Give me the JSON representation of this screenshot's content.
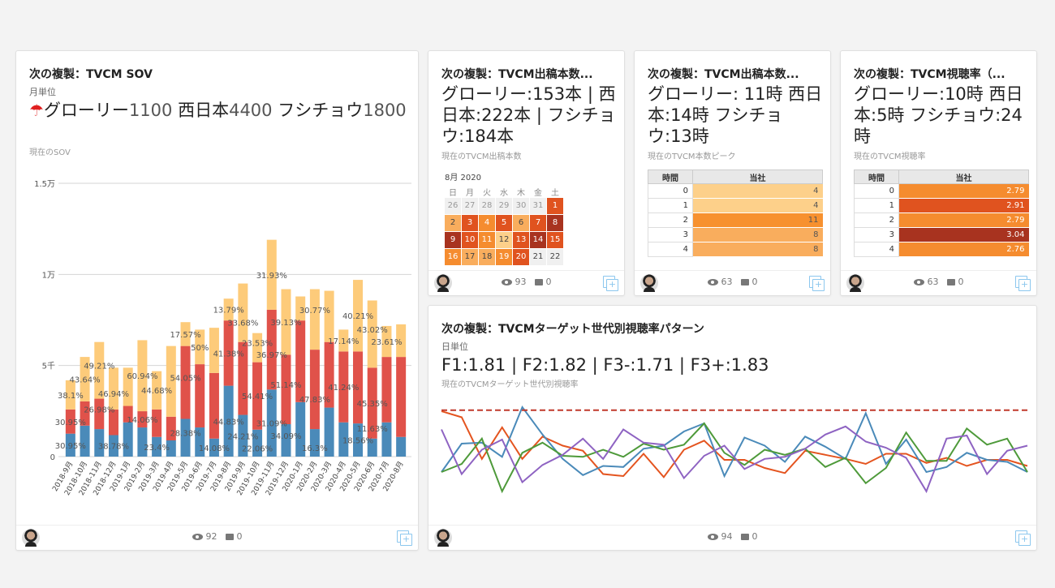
{
  "colors": {
    "blue": "#4a8ab9",
    "red": "#e0524a",
    "yellow": "#fdcb7a",
    "grid": "#d5d5d5",
    "accent": "#8cc7ee"
  },
  "cards": [
    {
      "title": "次の複製：TVCM SOV",
      "subtitle": "月単位",
      "kpi_parts": [
        [
          "グローリー",
          "1100"
        ],
        [
          " 西日本",
          "4400"
        ],
        [
          " フシチョウ",
          "1800"
        ]
      ],
      "caption": "現在のSOV",
      "views": "92",
      "comments": "0",
      "icon": "umbrella-icon"
    },
    {
      "title": "次の複製：TVCM出稿本数...",
      "kpi": "グローリー:153本 | 西日本:222本 | フシチョウ:184本",
      "caption": "現在のTVCM出稿本数",
      "views": "93",
      "comments": "0"
    },
    {
      "title": "次の複製：TVCM出稿本数...",
      "kpi": "グローリー: 11時 西日本:14時 フシチョウ:13時",
      "caption": "現在のTVCM本数ピーク",
      "views": "63",
      "comments": "0"
    },
    {
      "title": "次の複製：TVCM視聴率（...",
      "kpi": "グローリー:10時 西日本:5時 フシチョウ:24時",
      "caption": "現在のTVCM視聴率",
      "views": "63",
      "comments": "0"
    },
    {
      "title": "次の複製：TVCMターゲット世代別視聴率パターン",
      "subtitle": "日単位",
      "kpi": "F1:1.81 | F2:1.82 | F3-:1.71 | F3+:1.83",
      "caption": "現在のTVCMターゲット世代別視聴率",
      "views": "94",
      "comments": "0"
    }
  ],
  "calendar": {
    "header": "8月 2020",
    "weekdays": [
      "日",
      "月",
      "火",
      "水",
      "木",
      "金",
      "土"
    ],
    "cells": [
      [
        "26",
        0
      ],
      [
        "27",
        0
      ],
      [
        "28",
        0
      ],
      [
        "29",
        0
      ],
      [
        "30",
        0
      ],
      [
        "31",
        0
      ],
      [
        "1",
        4
      ],
      [
        "2",
        2
      ],
      [
        "3",
        4
      ],
      [
        "4",
        3
      ],
      [
        "5",
        4
      ],
      [
        "6",
        2
      ],
      [
        "7",
        4
      ],
      [
        "8",
        5
      ],
      [
        "9",
        5
      ],
      [
        "10",
        4
      ],
      [
        "11",
        3
      ],
      [
        "12",
        1
      ],
      [
        "13",
        4
      ],
      [
        "14",
        5
      ],
      [
        "15",
        4
      ],
      [
        "16",
        3
      ],
      [
        "17",
        2
      ],
      [
        "18",
        2
      ],
      [
        "19",
        3
      ],
      [
        "20",
        4
      ],
      [
        "21",
        0
      ],
      [
        "22",
        0
      ]
    ],
    "level_colors": [
      "#f0f0f0",
      "#fdd08a",
      "#f9ad5d",
      "#f58c2f",
      "#e0531f",
      "#a8331f"
    ]
  },
  "table_peak": {
    "headers": [
      "時間",
      "当社"
    ],
    "rows": [
      [
        "0",
        "4",
        "#fdd08a"
      ],
      [
        "1",
        "4",
        "#fdd08a"
      ],
      [
        "2",
        "11",
        "#f7912f"
      ],
      [
        "3",
        "8",
        "#f9ad5d"
      ],
      [
        "4",
        "8",
        "#f9ad5d"
      ]
    ]
  },
  "table_rating": {
    "headers": [
      "時間",
      "当社"
    ],
    "rows": [
      [
        "0",
        "2.79",
        "#f58c2f"
      ],
      [
        "1",
        "2.91",
        "#e0531f"
      ],
      [
        "2",
        "2.79",
        "#f58c2f"
      ],
      [
        "3",
        "3.04",
        "#a8331f"
      ],
      [
        "4",
        "2.76",
        "#f58c2f"
      ]
    ]
  },
  "chart_data": [
    {
      "type": "bar",
      "stacked": true,
      "ylim": [
        0,
        15000
      ],
      "grid": true,
      "yticks": [
        {
          "v": 0,
          "label": "0"
        },
        {
          "v": 5000,
          "label": "5千"
        },
        {
          "v": 10000,
          "label": "1万"
        },
        {
          "v": 15000,
          "label": "1.5万"
        }
      ],
      "categories": [
        "2018-9月",
        "2018-10月",
        "2018-11月",
        "2018-12月",
        "2019-1月",
        "2019-2月",
        "2019-3月",
        "2019-4月",
        "2019-5月",
        "2019-6月",
        "2019-7月",
        "2019-8月",
        "2019-9月",
        "2019-10月",
        "2019-11月",
        "2019-12月",
        "2020-1月",
        "2020-2月",
        "2020-3月",
        "2020-4月",
        "2020-5月",
        "2020-6月",
        "2020-7月",
        "2020-8月"
      ],
      "series": [
        {
          "color": "#4a8ab9",
          "values": [
            1260,
            1700,
            1510,
            1180,
            1880,
            1600,
            1080,
            890,
            2070,
            1600,
            990,
            3890,
            2290,
            1480,
            3680,
            1780,
            2990,
            1510,
            2690,
            1880,
            1820,
            990,
            1880,
            1080
          ]
        },
        {
          "color": "#e0524a",
          "values": [
            1330,
            1330,
            1670,
            1410,
            900,
            890,
            1510,
            1300,
            4000,
            3470,
            3600,
            3580,
            4000,
            3700,
            4380,
            3810,
            4480,
            4360,
            3600,
            3890,
            3950,
            3890,
            3590,
            4390
          ]
        },
        {
          "color": "#fdcb7a",
          "values": [
            1600,
            2440,
            3110,
            2290,
            2100,
            3900,
            2100,
            3880,
            1310,
            1900,
            2480,
            1200,
            3210,
            1600,
            3840,
            3600,
            1320,
            3320,
            2810,
            1200,
            3930,
            3690,
            1700,
            1790
          ]
        }
      ],
      "data_labels": [
        [
          "30.95%",
          "30.95%",
          "38.1%"
        ],
        [
          "",
          "",
          "43.64%"
        ],
        [
          "",
          "26.98%",
          "49.21%"
        ],
        [
          "38.78%",
          "",
          "46.94%"
        ],
        [
          "",
          "",
          ""
        ],
        [
          "",
          "14.06%",
          "60.94%"
        ],
        [
          "23.4%",
          "",
          "44.68%"
        ],
        [
          "",
          "",
          ""
        ],
        [
          "28.38%",
          "54.05%",
          "17.57%"
        ],
        [
          "",
          "",
          "50%"
        ],
        [
          "14.08%",
          "",
          ""
        ],
        [
          "44.83%",
          "41.38%",
          "13.79%"
        ],
        [
          "24.21%",
          "",
          "33.68%"
        ],
        [
          "22.06%",
          "54.41%",
          "23.53%"
        ],
        [
          "31.09%",
          "36.97%",
          "31.93%"
        ],
        [
          "34.09%",
          "51.14%",
          "39.13%"
        ],
        [
          "",
          "",
          ""
        ],
        [
          "16.3%",
          "47.83%",
          "30.77%"
        ],
        [
          "",
          "",
          ""
        ],
        [
          "",
          "41.24%",
          "17.14%"
        ],
        [
          "18.56%",
          "",
          "40.21%"
        ],
        [
          "11.63%",
          "45.35%",
          "43.02%"
        ],
        [
          "",
          "",
          "23.61%"
        ],
        [
          "",
          "",
          ""
        ]
      ]
    },
    {
      "type": "line",
      "grid": false,
      "ylim": [
        0,
        100
      ],
      "reference_line": {
        "value": 85,
        "color": "#c0392b",
        "style": "dashed"
      },
      "series": [
        {
          "color": "#e4541f",
          "values": [
            84,
            78,
            37,
            68,
            37,
            59,
            50,
            45,
            22,
            20,
            42,
            19,
            46,
            55,
            36,
            36,
            28,
            23,
            45,
            41,
            37,
            32,
            42,
            42,
            33,
            38,
            30,
            36,
            36,
            30
          ]
        },
        {
          "color": "#4a8ab9",
          "values": [
            24,
            52,
            53,
            39,
            88,
            61,
            37,
            21,
            30,
            29,
            47,
            50,
            64,
            72,
            20,
            58,
            50,
            34,
            59,
            49,
            37,
            82,
            32,
            56,
            24,
            29,
            43,
            36,
            34,
            24
          ]
        },
        {
          "color": "#4e9a3a",
          "values": [
            24,
            32,
            57,
            5,
            43,
            53,
            40,
            39,
            46,
            39,
            52,
            46,
            51,
            72,
            43,
            31,
            46,
            41,
            47,
            29,
            38,
            13,
            28,
            63,
            35,
            35,
            67,
            51,
            57,
            24
          ]
        },
        {
          "color": "#8e63c2",
          "values": [
            66,
            22,
            46,
            56,
            14,
            31,
            41,
            57,
            37,
            66,
            53,
            51,
            18,
            40,
            50,
            27,
            37,
            39,
            47,
            61,
            69,
            54,
            48,
            38,
            5,
            57,
            60,
            22,
            45,
            50
          ]
        }
      ]
    }
  ]
}
